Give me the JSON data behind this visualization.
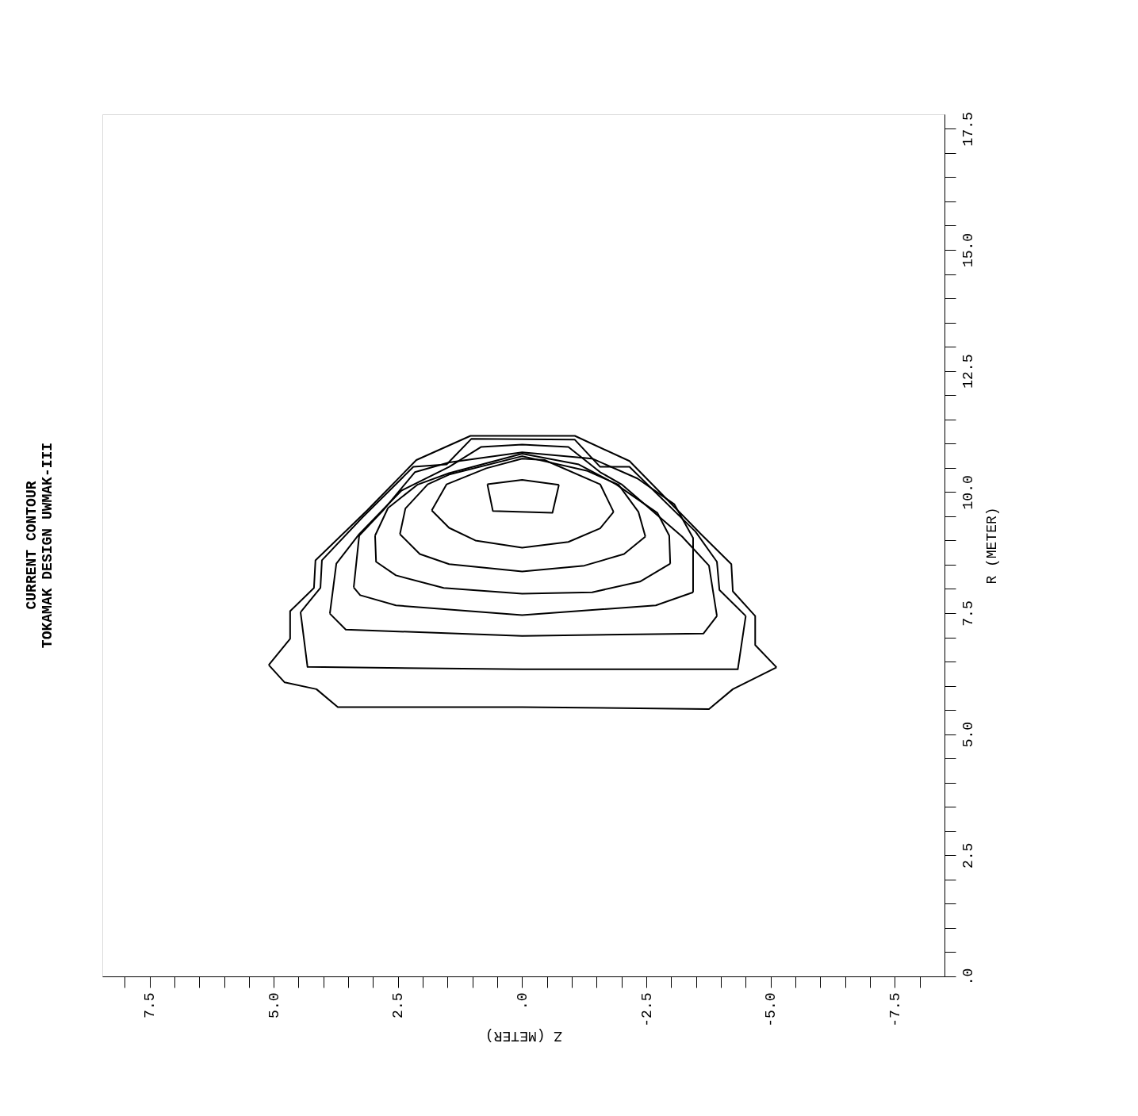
{
  "chart_data": {
    "type": "line",
    "title": "CURRENT  CONTOUR",
    "subtitle": "TOKAMAK DESIGN UWMAK-III",
    "xlabel": "Z (METER)",
    "ylabel": "R (METER)",
    "xlim": [
      8.45,
      -8.5
    ],
    "ylim": [
      0,
      17.8
    ],
    "xticks": [
      {
        "value": 8.0,
        "label": null
      },
      {
        "value": 7.5,
        "label": "7.5"
      },
      {
        "value": 7.0,
        "label": null
      },
      {
        "value": 6.5,
        "label": null
      },
      {
        "value": 6.0,
        "label": null
      },
      {
        "value": 5.5,
        "label": null
      },
      {
        "value": 5.0,
        "label": "5.0"
      },
      {
        "value": 4.5,
        "label": null
      },
      {
        "value": 4.0,
        "label": null
      },
      {
        "value": 3.5,
        "label": null
      },
      {
        "value": 3.0,
        "label": null
      },
      {
        "value": 2.5,
        "label": "2.5"
      },
      {
        "value": 2.0,
        "label": null
      },
      {
        "value": 1.5,
        "label": null
      },
      {
        "value": 1.0,
        "label": null
      },
      {
        "value": 0.5,
        "label": null
      },
      {
        "value": 0,
        "label": ".0"
      },
      {
        "value": -0.5,
        "label": null
      },
      {
        "value": -1.0,
        "label": null
      },
      {
        "value": -1.5,
        "label": null
      },
      {
        "value": -2.0,
        "label": null
      },
      {
        "value": -2.5,
        "label": "-2.5"
      },
      {
        "value": -3.0,
        "label": null
      },
      {
        "value": -3.5,
        "label": null
      },
      {
        "value": -4.0,
        "label": null
      },
      {
        "value": -4.5,
        "label": null
      },
      {
        "value": -5.0,
        "label": "-5.0"
      },
      {
        "value": -5.5,
        "label": null
      },
      {
        "value": -6.0,
        "label": null
      },
      {
        "value": -6.5,
        "label": null
      },
      {
        "value": -7.0,
        "label": null
      },
      {
        "value": -7.5,
        "label": "-7.5"
      },
      {
        "value": -8.0,
        "label": null
      }
    ],
    "yticks": [
      {
        "value": 0,
        "label": ".0"
      },
      {
        "value": 0.5,
        "label": null
      },
      {
        "value": 1.0,
        "label": null
      },
      {
        "value": 1.5,
        "label": null
      },
      {
        "value": 2.0,
        "label": null
      },
      {
        "value": 2.5,
        "label": "2.5"
      },
      {
        "value": 3.0,
        "label": null
      },
      {
        "value": 3.5,
        "label": null
      },
      {
        "value": 4.0,
        "label": null
      },
      {
        "value": 4.5,
        "label": null
      },
      {
        "value": 5.0,
        "label": "5.0"
      },
      {
        "value": 5.5,
        "label": null
      },
      {
        "value": 6.0,
        "label": null
      },
      {
        "value": 6.5,
        "label": null
      },
      {
        "value": 7.0,
        "label": null
      },
      {
        "value": 7.5,
        "label": "7.5"
      },
      {
        "value": 8.0,
        "label": null
      },
      {
        "value": 8.5,
        "label": null
      },
      {
        "value": 9.0,
        "label": null
      },
      {
        "value": 9.5,
        "label": null
      },
      {
        "value": 10.0,
        "label": "10.0"
      },
      {
        "value": 10.5,
        "label": null
      },
      {
        "value": 11.0,
        "label": null
      },
      {
        "value": 11.5,
        "label": null
      },
      {
        "value": 12.0,
        "label": null
      },
      {
        "value": 12.5,
        "label": "12.5"
      },
      {
        "value": 13.0,
        "label": null
      },
      {
        "value": 13.5,
        "label": null
      },
      {
        "value": 14.0,
        "label": null
      },
      {
        "value": 14.5,
        "label": null
      },
      {
        "value": 15.0,
        "label": "15.0"
      },
      {
        "value": 15.5,
        "label": null
      },
      {
        "value": 16.0,
        "label": null
      },
      {
        "value": 16.5,
        "label": null
      },
      {
        "value": 17.0,
        "label": null
      },
      {
        "value": 17.5,
        "label": "17.5"
      }
    ],
    "grid": false,
    "marker": "none",
    "line_style": "solid",
    "series": [
      {
        "color": "#000000",
        "x": [
          5.1,
          4.67,
          4.67,
          4.19,
          4.16,
          3.12,
          2.13,
          1.04,
          -1.06,
          -2.16,
          -3.6,
          -4.21,
          -4.24,
          -4.69,
          -4.69,
          -5.12
        ],
        "values": [
          6.43,
          6.97,
          7.54,
          8.02,
          8.59,
          9.62,
          10.66,
          11.16,
          11.16,
          10.64,
          9.13,
          8.51,
          7.95,
          7.44,
          6.84,
          6.38
        ]
      },
      {
        "color": "#000000",
        "x": [
          5.1,
          4.78,
          4.14,
          3.71,
          0,
          -3.76,
          -4.24,
          -5.12
        ],
        "values": [
          6.43,
          6.07,
          5.93,
          5.56,
          5.56,
          5.52,
          5.93,
          6.38
        ]
      },
      {
        "color": "#000000",
        "x": [
          4.46,
          4.06,
          4.03,
          3.23,
          2.19,
          1.52,
          1.02,
          -1.06,
          -1.57,
          -2.16,
          -3.49,
          -3.92,
          -3.97,
          -4.5
        ],
        "values": [
          7.52,
          8.02,
          8.59,
          9.46,
          10.52,
          10.57,
          11.1,
          11.08,
          10.52,
          10.52,
          9.18,
          8.56,
          7.98,
          7.44
        ]
      },
      {
        "color": "#000000",
        "x": [
          4.46,
          4.32,
          0,
          -4.34,
          -4.5
        ],
        "values": [
          7.52,
          6.39,
          6.34,
          6.34,
          7.44
        ]
      },
      {
        "color": "#000000",
        "x": [
          3.87,
          3.74,
          3.28,
          2.43,
          1.47,
          0.83,
          0,
          -0.93,
          -1.57,
          -2.0,
          -3.22,
          -3.76,
          -3.92
        ],
        "values": [
          7.49,
          8.52,
          9.13,
          10.03,
          10.52,
          10.93,
          10.98,
          10.93,
          10.41,
          10.16,
          9.08,
          8.48,
          7.44
        ]
      },
      {
        "color": "#000000",
        "x": [
          3.87,
          3.55,
          0,
          -3.65,
          -3.92
        ],
        "values": [
          7.49,
          7.16,
          7.03,
          7.08,
          7.44
        ]
      },
      {
        "color": "#000000",
        "x": [
          3.39,
          3.28,
          2.8,
          2.16,
          1.47,
          0,
          -1.41,
          -2.32,
          -3.06,
          -3.44,
          -3.44
        ],
        "values": [
          8.03,
          9.1,
          9.62,
          10.41,
          10.61,
          10.82,
          10.69,
          10.28,
          9.75,
          9.05,
          7.93
        ]
      },
      {
        "color": "#000000",
        "x": [
          3.39,
          3.26,
          2.54,
          0,
          -2.69,
          -3.44
        ],
        "values": [
          8.03,
          7.87,
          7.66,
          7.46,
          7.66,
          7.93
        ]
      },
      {
        "color": "#000000",
        "x": [
          2.96,
          2.7,
          2.11,
          1.47,
          0,
          -1.14,
          -1.89,
          -2.72,
          -2.96,
          -2.98
        ],
        "values": [
          9.1,
          9.67,
          10.15,
          10.39,
          10.79,
          10.57,
          10.16,
          9.57,
          9.1,
          8.52
        ]
      },
      {
        "color": "#000000",
        "x": [
          2.96,
          2.94,
          2.54,
          1.58,
          0,
          -1.41,
          -2.37,
          -2.98
        ],
        "values": [
          9.1,
          8.56,
          8.28,
          8.02,
          7.9,
          7.93,
          8.15,
          8.52
        ]
      },
      {
        "color": "#000000",
        "x": [
          2.46,
          2.35,
          1.9,
          1.47,
          0,
          -1.3,
          -1.94,
          -2.34,
          -2.48
        ],
        "values": [
          9.13,
          9.66,
          10.16,
          10.36,
          10.74,
          10.44,
          10.15,
          9.59,
          9.08
        ]
      },
      {
        "color": "#000000",
        "x": [
          2.46,
          2.06,
          1.47,
          0,
          -1.25,
          -2.05,
          -2.48
        ],
        "values": [
          9.13,
          8.72,
          8.51,
          8.36,
          8.48,
          8.72,
          9.08
        ]
      },
      {
        "color": "#000000",
        "x": [
          1.82,
          1.52,
          0.72,
          0,
          -0.45,
          -1.57,
          -1.84
        ],
        "values": [
          9.62,
          10.16,
          10.49,
          10.69,
          10.66,
          10.16,
          9.59
        ]
      },
      {
        "color": "#000000",
        "x": [
          1.82,
          1.47,
          0.94,
          0,
          -0.93,
          -1.57,
          -1.84
        ],
        "values": [
          9.62,
          9.26,
          9.0,
          8.85,
          8.97,
          9.25,
          9.59
        ]
      },
      {
        "color": "#000000",
        "x": [
          0.7,
          0,
          -0.74
        ],
        "values": [
          10.16,
          10.25,
          10.15
        ]
      },
      {
        "color": "#000000",
        "x": [
          0.7,
          0.59,
          -0.61,
          -0.74
        ],
        "values": [
          10.16,
          9.61,
          9.57,
          10.15
        ]
      }
    ]
  }
}
